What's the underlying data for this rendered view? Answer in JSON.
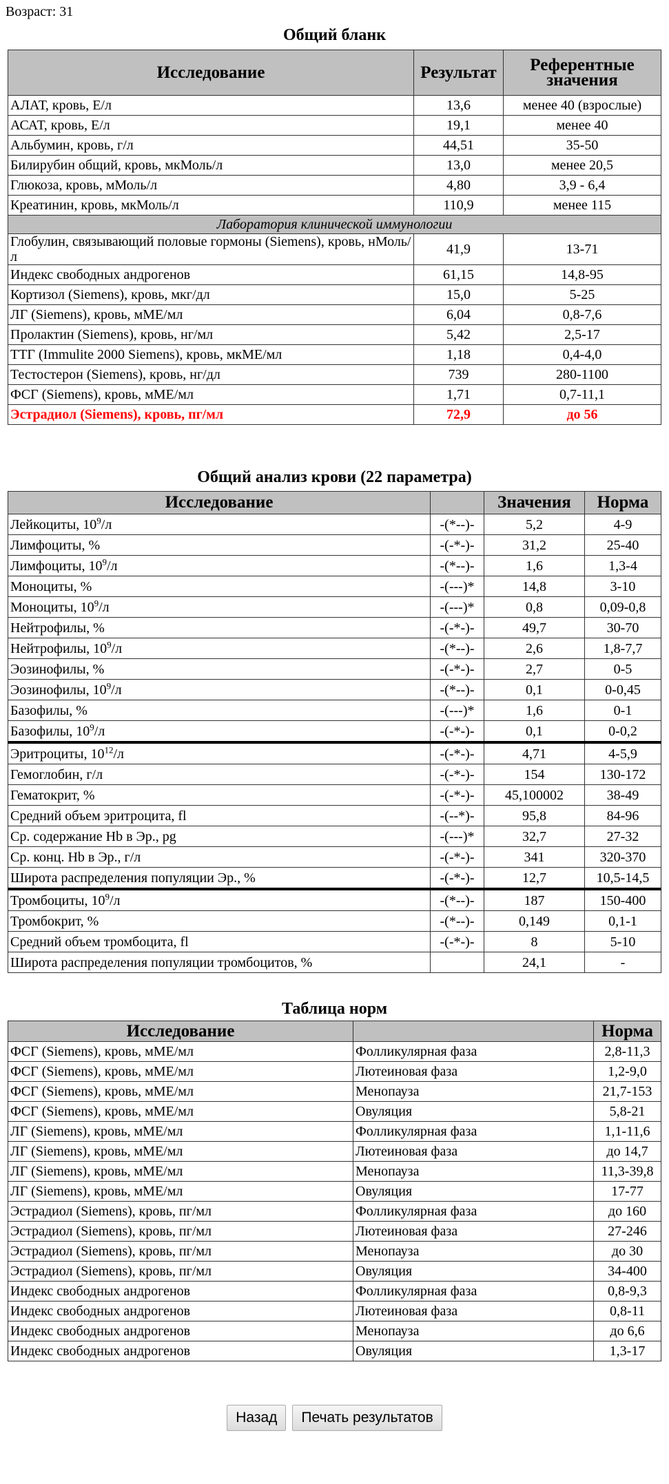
{
  "age_label": "Возраст: 31",
  "general": {
    "title": "Общий бланк",
    "headers": [
      "Исследование",
      "Результат",
      "Референтные значения"
    ],
    "rows": [
      {
        "name": "АЛАТ, кровь, Е/л",
        "result": "13,6",
        "ref": "менее 40 (взрослые)"
      },
      {
        "name": "АСАТ, кровь, Е/л",
        "result": "19,1",
        "ref": "менее 40"
      },
      {
        "name": "Альбумин, кровь, г/л",
        "result": "44,51",
        "ref": "35-50"
      },
      {
        "name": "Билирубин общий, кровь, мкМоль/л",
        "result": "13,0",
        "ref": "менее 20,5"
      },
      {
        "name": "Глюкоза, кровь, мМоль/л",
        "result": "4,80",
        "ref": "3,9 - 6,4"
      },
      {
        "name": "Креатинин, кровь, мкМоль/л",
        "result": "110,9",
        "ref": "менее 115"
      },
      {
        "section": "Лаборатория клинической иммунологии"
      },
      {
        "name": "Глобулин, связывающий половые гормоны (Siemens), кровь, нМоль/л",
        "result": "41,9",
        "ref": "13-71"
      },
      {
        "name": "Индекс свободных андрогенов",
        "result": "61,15",
        "ref": "14,8-95"
      },
      {
        "name": "Кортизол (Siemens), кровь, мкг/дл",
        "result": "15,0",
        "ref": "5-25"
      },
      {
        "name": "ЛГ (Siemens), кровь, мМЕ/мл",
        "result": "6,04",
        "ref": "0,8-7,6"
      },
      {
        "name": "Пролактин (Siemens), кровь, нг/мл",
        "result": "5,42",
        "ref": "2,5-17"
      },
      {
        "name": "ТТГ (Immulite 2000 Siemens), кровь, мкМЕ/мл",
        "result": "1,18",
        "ref": "0,4-4,0"
      },
      {
        "name": "Тестостерон (Siemens), кровь, нг/дл",
        "result": "739",
        "ref": "280-1100"
      },
      {
        "name": "ФСГ (Siemens), кровь, мМЕ/мл",
        "result": "1,71",
        "ref": "0,7-11,1"
      },
      {
        "name": "Эстрадиол (Siemens), кровь, пг/мл",
        "result": "72,9",
        "ref": "до 56",
        "alert": true
      }
    ]
  },
  "cbc": {
    "title": "Общий анализ крови (22 параметра)",
    "headers": [
      "Исследование",
      "",
      "Значения",
      "Норма"
    ],
    "alert_color": "#ff0000",
    "rows": [
      {
        "pre": "Лейкоциты, 10",
        "sup": "9",
        "post": "/л",
        "scale": "-(*--)-",
        "value": "5,2",
        "norm": "4-9"
      },
      {
        "pre": "Лимфоциты, %",
        "scale": "-(-*-)-",
        "value": "31,2",
        "norm": "25-40"
      },
      {
        "pre": "Лимфоциты, 10",
        "sup": "9",
        "post": "/л",
        "scale": "-(*--)-",
        "value": "1,6",
        "norm": "1,3-4"
      },
      {
        "pre": "Моноциты, %",
        "scale": "-(---)*",
        "value": "14,8",
        "norm": "3-10"
      },
      {
        "pre": "Моноциты, 10",
        "sup": "9",
        "post": "/л",
        "scale": "-(---)*",
        "value": "0,8",
        "norm": "0,09-0,8"
      },
      {
        "pre": "Нейтрофилы, %",
        "scale": "-(-*-)-",
        "value": "49,7",
        "norm": "30-70"
      },
      {
        "pre": "Нейтрофилы, 10",
        "sup": "9",
        "post": "/л",
        "scale": "-(*--)-",
        "value": "2,6",
        "norm": "1,8-7,7"
      },
      {
        "pre": "Эозинофилы, %",
        "scale": "-(-*-)-",
        "value": "2,7",
        "norm": "0-5"
      },
      {
        "pre": "Эозинофилы, 10",
        "sup": "9",
        "post": "/л",
        "scale": "-(*--)-",
        "value": "0,1",
        "norm": "0-0,45"
      },
      {
        "pre": "Базофилы, %",
        "scale": "-(---)*",
        "value": "1,6",
        "norm": "0-1"
      },
      {
        "pre": "Базофилы, 10",
        "sup": "9",
        "post": "/л",
        "scale": "-(-*-)-",
        "value": "0,1",
        "norm": "0-0,2"
      },
      {
        "pre": "Эритроциты, 10",
        "sup": "12",
        "post": "/л",
        "scale": "-(-*-)-",
        "value": "4,71",
        "norm": "4-5,9",
        "sep": true
      },
      {
        "pre": "Гемоглобин, г/л",
        "scale": "-(-*-)-",
        "value": "154",
        "norm": "130-172"
      },
      {
        "pre": "Гематокрит, %",
        "scale": "-(-*-)-",
        "value": "45,100002",
        "norm": "38-49"
      },
      {
        "pre": "Средний объем эритроцита, fl",
        "scale": "-(--*)-",
        "value": "95,8",
        "norm": "84-96"
      },
      {
        "pre": "Ср. содержание Hb в Эр., pg",
        "scale": "-(---)*",
        "value": "32,7",
        "norm": "27-32"
      },
      {
        "pre": "Ср. конц. Hb в Эр., г/л",
        "scale": "-(-*-)-",
        "value": "341",
        "norm": "320-370"
      },
      {
        "pre": "Широта распределения популяции Эр., %",
        "scale": "-(-*-)-",
        "value": "12,7",
        "norm": "10,5-14,5"
      },
      {
        "pre": "Тромбоциты, 10",
        "sup": "9",
        "post": "/л",
        "scale": "-(*--)-",
        "value": "187",
        "norm": "150-400",
        "sep": true
      },
      {
        "pre": "Тромбокрит, %",
        "scale": "-(*--)-",
        "value": "0,149",
        "norm": "0,1-1"
      },
      {
        "pre": "Средний объем тромбоцита, fl",
        "scale": "-(-*-)-",
        "value": "8",
        "norm": "5-10"
      },
      {
        "pre": "Широта распределения популяции тромбоцитов, %",
        "scale": "",
        "value": "24,1",
        "norm": "-"
      }
    ]
  },
  "norms": {
    "title": "Таблица норм",
    "headers": [
      "Исследование",
      "",
      "Норма"
    ],
    "rows": [
      {
        "name": "ФСГ (Siemens), кровь, мМЕ/мл",
        "phase": "Фолликулярная фаза",
        "norm": "2,8-11,3"
      },
      {
        "name": "ФСГ (Siemens), кровь, мМЕ/мл",
        "phase": "Лютеиновая фаза",
        "norm": "1,2-9,0"
      },
      {
        "name": "ФСГ (Siemens), кровь, мМЕ/мл",
        "phase": "Менопауза",
        "norm": "21,7-153"
      },
      {
        "name": "ФСГ (Siemens), кровь, мМЕ/мл",
        "phase": "Овуляция",
        "norm": "5,8-21"
      },
      {
        "name": "ЛГ (Siemens), кровь, мМЕ/мл",
        "phase": "Фолликулярная фаза",
        "norm": "1,1-11,6"
      },
      {
        "name": "ЛГ (Siemens), кровь, мМЕ/мл",
        "phase": "Лютеиновая фаза",
        "norm": "до 14,7"
      },
      {
        "name": "ЛГ (Siemens), кровь, мМЕ/мл",
        "phase": "Менопауза",
        "norm": "11,3-39,8"
      },
      {
        "name": "ЛГ (Siemens), кровь, мМЕ/мл",
        "phase": "Овуляция",
        "norm": "17-77"
      },
      {
        "name": "Эстрадиол (Siemens), кровь, пг/мл",
        "phase": "Фолликулярная фаза",
        "norm": "до 160"
      },
      {
        "name": "Эстрадиол (Siemens), кровь, пг/мл",
        "phase": "Лютеиновая фаза",
        "norm": "27-246"
      },
      {
        "name": "Эстрадиол (Siemens), кровь, пг/мл",
        "phase": "Менопауза",
        "norm": "до 30"
      },
      {
        "name": "Эстрадиол (Siemens), кровь, пг/мл",
        "phase": "Овуляция",
        "norm": "34-400"
      },
      {
        "name": "Индекс свободных андрогенов",
        "phase": "Фолликулярная фаза",
        "norm": "0,8-9,3"
      },
      {
        "name": "Индекс свободных андрогенов",
        "phase": "Лютеиновая фаза",
        "norm": "0,8-11"
      },
      {
        "name": "Индекс свободных андрогенов",
        "phase": "Менопауза",
        "norm": "до 6,6"
      },
      {
        "name": "Индекс свободных андрогенов",
        "phase": "Овуляция",
        "norm": "1,3-17"
      }
    ]
  },
  "buttons": {
    "back": "Назад",
    "print": "Печать результатов"
  }
}
